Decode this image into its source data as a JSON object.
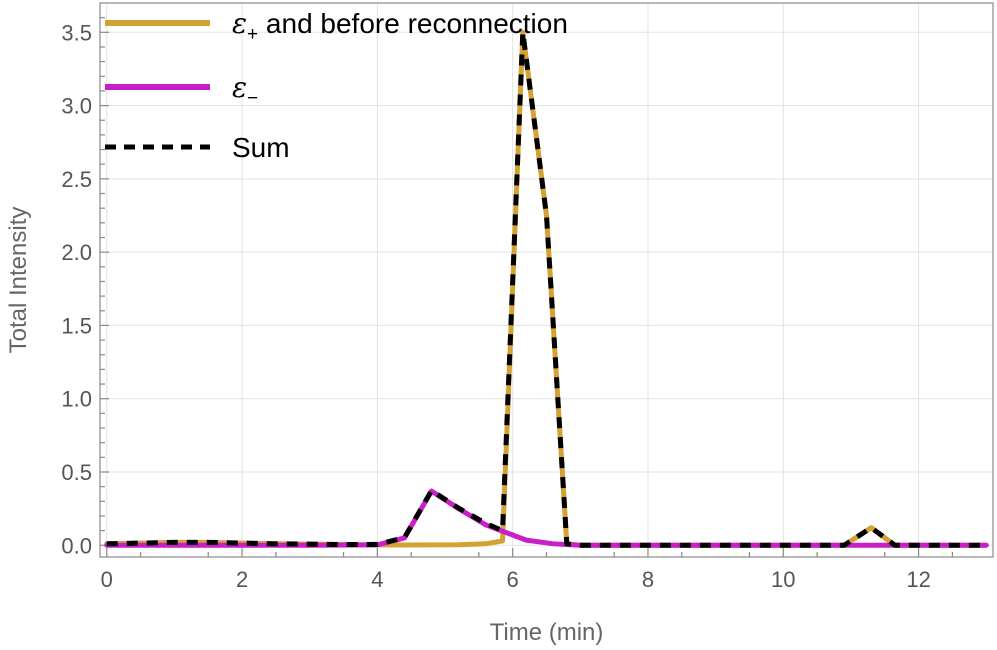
{
  "chart_data": {
    "type": "line",
    "title": "",
    "xlabel": "Time (min)",
    "ylabel": "Total Intensity",
    "xlim": [
      -0.1,
      13.1
    ],
    "ylim": [
      -0.08,
      3.7
    ],
    "x_ticks": [
      0,
      2,
      4,
      6,
      8,
      10,
      12
    ],
    "y_ticks": [
      0.0,
      0.5,
      1.0,
      1.5,
      2.0,
      2.5,
      3.0,
      3.5
    ],
    "grid": true,
    "legend_position": "top-left",
    "series": [
      {
        "name": "ε+ and before reconnection",
        "legend_main": "ε",
        "legend_sub": "+",
        "legend_rest": " and before reconnection",
        "color": "#D4A232",
        "style": "solid",
        "points": [
          [
            0,
            0.01
          ],
          [
            0.5,
            0.015
          ],
          [
            1,
            0.02
          ],
          [
            1.5,
            0.02
          ],
          [
            2,
            0.015
          ],
          [
            2.5,
            0.01
          ],
          [
            3,
            0.008
          ],
          [
            3.5,
            0.005
          ],
          [
            4,
            0.003
          ],
          [
            4.4,
            0.002
          ],
          [
            4.8,
            0.003
          ],
          [
            5.2,
            0.004
          ],
          [
            5.6,
            0.01
          ],
          [
            5.85,
            0.03
          ],
          [
            6.15,
            3.5
          ],
          [
            6.5,
            2.25
          ],
          [
            6.8,
            0.01
          ],
          [
            7,
            0.0
          ],
          [
            8,
            0.0
          ],
          [
            9,
            0.0
          ],
          [
            10,
            0.0
          ],
          [
            10.9,
            0.0
          ],
          [
            11.3,
            0.12
          ],
          [
            11.65,
            0.0
          ],
          [
            12,
            0.0
          ],
          [
            13,
            0.0
          ]
        ]
      },
      {
        "name": "ε−",
        "legend_main": "ε",
        "legend_sub": "−",
        "legend_rest": "",
        "color": "#C91FC8",
        "style": "solid",
        "points": [
          [
            0,
            0.0
          ],
          [
            1,
            0.0
          ],
          [
            2,
            0.0
          ],
          [
            3,
            0.0
          ],
          [
            4,
            0.003
          ],
          [
            4.4,
            0.05
          ],
          [
            4.8,
            0.37
          ],
          [
            5.2,
            0.25
          ],
          [
            5.6,
            0.14
          ],
          [
            6.0,
            0.07
          ],
          [
            6.2,
            0.035
          ],
          [
            6.6,
            0.01
          ],
          [
            7,
            0.0
          ],
          [
            8,
            0.0
          ],
          [
            9,
            0.0
          ],
          [
            10,
            0.0
          ],
          [
            11,
            0.0
          ],
          [
            12,
            0.0
          ],
          [
            13,
            0.0
          ]
        ]
      },
      {
        "name": "Sum",
        "legend_main": "Sum",
        "legend_sub": "",
        "legend_rest": "",
        "color": "#000000",
        "style": "dashed",
        "points": [
          [
            0,
            0.01
          ],
          [
            0.5,
            0.015
          ],
          [
            1,
            0.02
          ],
          [
            1.5,
            0.02
          ],
          [
            2,
            0.015
          ],
          [
            2.5,
            0.01
          ],
          [
            3,
            0.008
          ],
          [
            3.5,
            0.005
          ],
          [
            4,
            0.006
          ],
          [
            4.4,
            0.052
          ],
          [
            4.8,
            0.373
          ],
          [
            5.2,
            0.254
          ],
          [
            5.6,
            0.15
          ],
          [
            5.85,
            0.1
          ],
          [
            6.15,
            3.5
          ],
          [
            6.5,
            2.25
          ],
          [
            6.8,
            0.01
          ],
          [
            7,
            0.0
          ],
          [
            8,
            0.0
          ],
          [
            9,
            0.0
          ],
          [
            10,
            0.0
          ],
          [
            10.9,
            0.0
          ],
          [
            11.3,
            0.12
          ],
          [
            11.65,
            0.0
          ],
          [
            12,
            0.0
          ],
          [
            13,
            0.0
          ]
        ]
      }
    ]
  }
}
